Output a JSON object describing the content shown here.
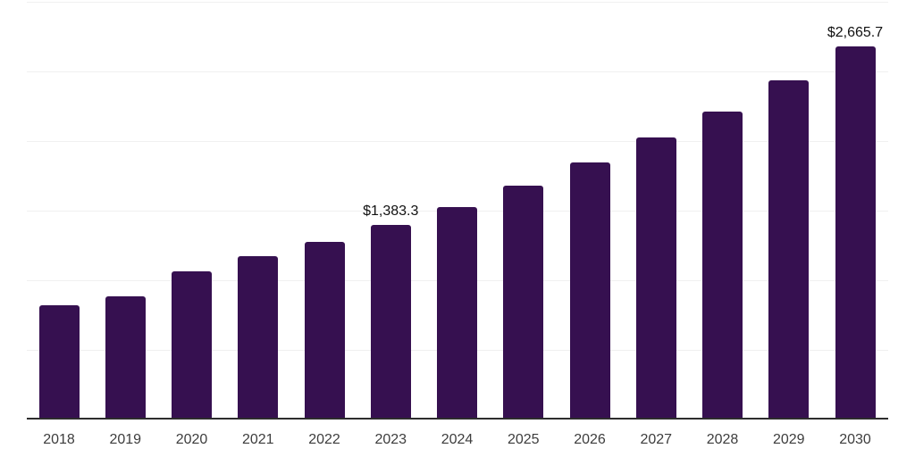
{
  "chart_data": {
    "type": "bar",
    "categories": [
      "2018",
      "2019",
      "2020",
      "2021",
      "2022",
      "2023",
      "2024",
      "2025",
      "2026",
      "2027",
      "2028",
      "2029",
      "2030"
    ],
    "values": [
      805,
      875,
      1050,
      1160,
      1260,
      1383.3,
      1515,
      1665,
      1835,
      2010,
      2200,
      2420,
      2665.7
    ],
    "value_labels": [
      "",
      "",
      "",
      "",
      "",
      "$1,383.3",
      "",
      "",
      "",
      "",
      "",
      "",
      "$2,665.7"
    ],
    "ylim": [
      0,
      3000
    ],
    "gridline_interval": 500,
    "grid": "horizontal",
    "legend": "none"
  },
  "colors": {
    "bar": "#361050",
    "axis": "#2d2d2d",
    "gridline": "#f0f0f0",
    "tick_label": "#3d3d3d",
    "value_label": "#111111",
    "background": "#ffffff"
  }
}
